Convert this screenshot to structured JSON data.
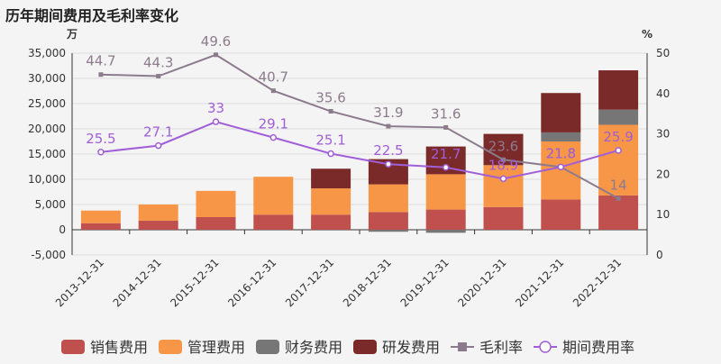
{
  "chart_data": {
    "type": "bar+line",
    "title": "历年期间费用及毛利率变化",
    "left_axis_unit": "万",
    "right_axis_unit": "%",
    "categories": [
      "2013-12-31",
      "2014-12-31",
      "2015-12-31",
      "2016-12-31",
      "2017-12-31",
      "2018-12-31",
      "2019-12-31",
      "2020-12-31",
      "2021-12-31",
      "2022-12-31"
    ],
    "left_ylim": [
      -5000,
      35000
    ],
    "left_ticks": [
      -5000,
      0,
      5000,
      10000,
      15000,
      20000,
      25000,
      30000,
      35000
    ],
    "left_tick_labels": [
      "-5,000",
      "0",
      "5,000",
      "10,000",
      "15,000",
      "20,000",
      "25,000",
      "30,000",
      "35,000"
    ],
    "right_ylim": [
      0,
      50
    ],
    "right_ticks": [
      0,
      10,
      20,
      30,
      40,
      50
    ],
    "right_tick_labels": [
      "0",
      "10",
      "20",
      "30",
      "40",
      "50"
    ],
    "bar_series": [
      {
        "name": "销售费用",
        "color": "#c0504d",
        "values": [
          1300,
          1800,
          2500,
          3000,
          3000,
          3500,
          4000,
          4500,
          6000,
          6800
        ]
      },
      {
        "name": "管理费用",
        "color": "#f79646",
        "values": [
          2500,
          3200,
          5200,
          7500,
          5200,
          5500,
          7000,
          8300,
          11500,
          14000
        ]
      },
      {
        "name": "财务费用",
        "color": "#767676",
        "values": [
          0,
          0,
          0,
          0,
          0,
          -400,
          -600,
          0,
          1800,
          3000
        ]
      },
      {
        "name": "研发费用",
        "color": "#7b2a2a",
        "values": [
          0,
          0,
          0,
          0,
          3900,
          5000,
          5500,
          6200,
          7800,
          7800
        ]
      }
    ],
    "line_series": [
      {
        "name": "毛利率",
        "color": "#8c7b8c",
        "marker": "square",
        "values": [
          44.7,
          44.3,
          49.6,
          40.7,
          35.6,
          31.9,
          31.6,
          23.6,
          21.8,
          14
        ],
        "labels": [
          "44.7",
          "44.3",
          "49.6",
          "40.7",
          "35.6",
          "31.9",
          "31.6",
          "23.6",
          "21.8",
          "14"
        ]
      },
      {
        "name": "期间费用率",
        "color": "#a05ed8",
        "marker": "circle",
        "values": [
          25.5,
          27.1,
          33,
          29.1,
          25.1,
          22.5,
          21.7,
          18.9,
          21.8,
          25.9
        ],
        "labels": [
          "25.5",
          "27.1",
          "33",
          "29.1",
          "25.1",
          "22.5",
          "21.7",
          "18.9",
          "21.8",
          "25.9"
        ]
      }
    ],
    "legend": [
      "销售费用",
      "管理费用",
      "财务费用",
      "研发费用",
      "毛利率",
      "期间费用率"
    ]
  }
}
